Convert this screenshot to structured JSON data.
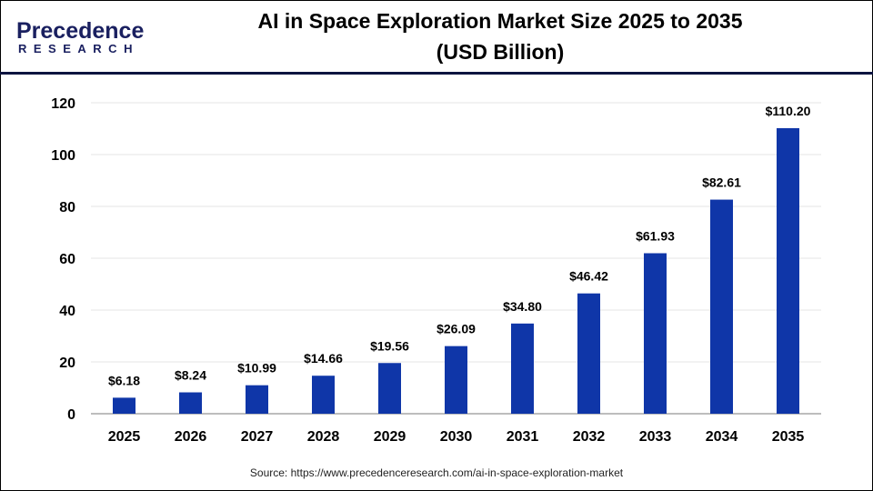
{
  "logo": {
    "text": "Precedence",
    "subtext": "RESEARCH"
  },
  "title_line1": "AI in Space Exploration Market Size 2025 to 2035",
  "title_line2": "(USD Billion)",
  "source": "Source: https://www.precedenceresearch.com/ai-in-space-exploration-market",
  "colors": {
    "bar": "#0f36a8",
    "grid": "#e6e6e6",
    "axis": "#bdbdbd",
    "header_line": "#0d1440"
  },
  "chart_data": {
    "type": "bar",
    "title": "AI in Space Exploration Market Size 2025 to 2035 (USD Billion)",
    "categories": [
      "2025",
      "2026",
      "2027",
      "2028",
      "2029",
      "2030",
      "2031",
      "2032",
      "2033",
      "2034",
      "2035"
    ],
    "values": [
      6.18,
      8.24,
      10.99,
      14.66,
      19.56,
      26.09,
      34.8,
      46.42,
      61.93,
      82.61,
      110.2
    ],
    "data_labels": [
      "$6.18",
      "$8.24",
      "$10.99",
      "$14.66",
      "$19.56",
      "$26.09",
      "$34.80",
      "$46.42",
      "$61.93",
      "$82.61",
      "$110.20"
    ],
    "yticks": [
      "0",
      "20",
      "40",
      "60",
      "80",
      "100",
      "120"
    ],
    "ylim": [
      0,
      120
    ],
    "xlabel": "",
    "ylabel": "",
    "grid": true,
    "legend": "none"
  }
}
